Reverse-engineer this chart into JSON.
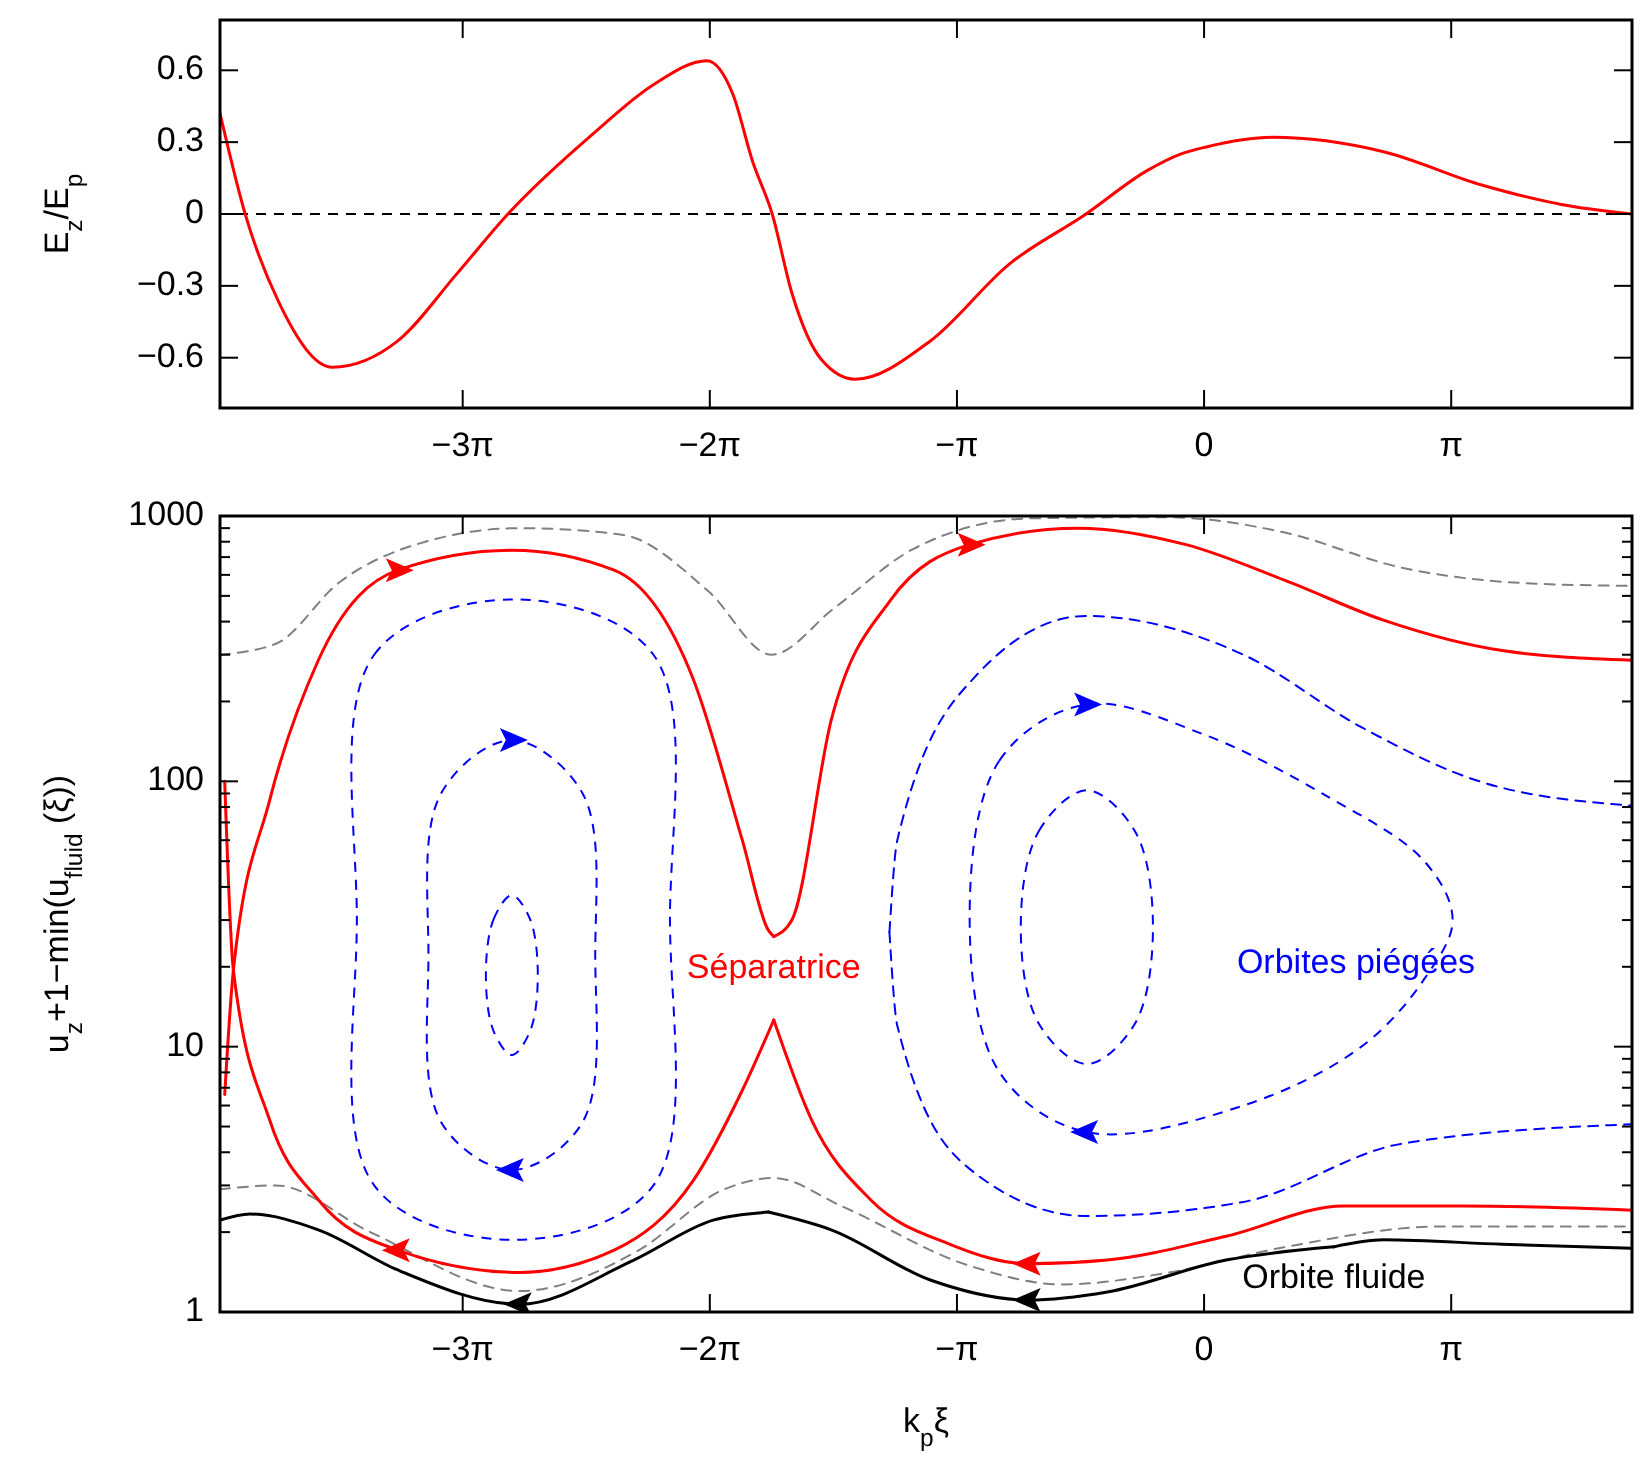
{
  "chart_data": [
    {
      "type": "line",
      "ylabel": "E$_{z}$/E$_{p}$",
      "xlim": [
        -12.51,
        5.44
      ],
      "ylim": [
        -0.81,
        0.81
      ],
      "xticks": [
        {
          "value": -9.42478,
          "label": "−3π"
        },
        {
          "value": -6.28319,
          "label": "−2π"
        },
        {
          "value": -3.14159,
          "label": "−π"
        },
        0,
        {
          "value": 3.14159,
          "label": "π"
        }
      ],
      "yticks": [
        {
          "value": -0.6,
          "label": "−0.6"
        },
        {
          "value": -0.3,
          "label": "−0.3"
        },
        0,
        0.3,
        0.6
      ],
      "ref_lines": [
        {
          "axis": "y",
          "value": 0,
          "color": "#000000",
          "line_style": "dashed"
        }
      ],
      "series": [
        {
          "color": "#ff0000",
          "line_style": "solid",
          "x": [
            -12.51,
            -12.19,
            -11.76,
            -11.08,
            -10.25,
            -9.5,
            -8.85,
            -7.75,
            -7.0,
            -6.32,
            -5.99,
            -5.74,
            -5.49,
            -5.24,
            -4.86,
            -4.44,
            -3.48,
            -2.48,
            -1.5,
            -0.73,
            -0.3,
            0.03,
            0.88,
            2.28,
            3.54,
            4.54,
            5.44
          ],
          "values": [
            0.42,
            0,
            -0.37,
            -0.64,
            -0.53,
            -0.25,
            0,
            0.34,
            0.54,
            0.64,
            0.5,
            0.22,
            0,
            -0.33,
            -0.61,
            -0.69,
            -0.53,
            -0.21,
            0,
            0.18,
            0.25,
            0.28,
            0.32,
            0.26,
            0.12,
            0.04,
            0
          ]
        }
      ]
    },
    {
      "type": "line",
      "xlabel": "k$_{p}$ξ",
      "ylabel": "u$_{z}$+1−min(u$_{fluid}$ (ξ))",
      "log": "y",
      "xlim": [
        -12.51,
        5.44
      ],
      "ylim": [
        1,
        1000
      ],
      "xticks": [
        {
          "value": -9.42478,
          "label": "−3π"
        },
        {
          "value": -6.28319,
          "label": "−2π"
        },
        {
          "value": -3.14159,
          "label": "−π"
        },
        0,
        {
          "value": 3.14159,
          "label": "π"
        }
      ],
      "yticks": [
        1,
        {
          "value": 2,
          "label": null
        },
        {
          "value": 3,
          "label": null
        },
        {
          "value": 4,
          "label": null
        },
        {
          "value": 5,
          "label": null
        },
        {
          "value": 6,
          "label": null
        },
        {
          "value": 7,
          "label": null
        },
        {
          "value": 8,
          "label": null
        },
        {
          "value": 9,
          "label": null
        },
        10,
        {
          "value": 20,
          "label": null
        },
        {
          "value": 30,
          "label": null
        },
        {
          "value": 40,
          "label": null
        },
        {
          "value": 50,
          "label": null
        },
        {
          "value": 60,
          "label": null
        },
        {
          "value": 70,
          "label": null
        },
        {
          "value": 80,
          "label": null
        },
        {
          "value": 90,
          "label": null
        },
        100,
        {
          "value": 200,
          "label": null
        },
        {
          "value": 300,
          "label": null
        },
        {
          "value": 400,
          "label": null
        },
        {
          "value": 500,
          "label": null
        },
        {
          "value": 600,
          "label": null
        },
        {
          "value": 700,
          "label": null
        },
        {
          "value": 800,
          "label": null
        },
        {
          "value": 900,
          "label": null
        },
        1000
      ],
      "annotations": [
        "Orbites piégées"
      ],
      "series": [
        {
          "color": "#808080",
          "line_style": "dashed",
          "x": [
            -12.51,
            -11.8,
            -11.0,
            -9.9,
            -8.7,
            -7.4,
            -6.3,
            -5.5,
            -4.7,
            -3.7,
            -2.2,
            -0.5,
            1.0,
            2.5,
            4.0,
            5.44
          ],
          "values": [
            300,
            330,
            560,
            800,
            900,
            850,
            520,
            300,
            450,
            750,
            980,
            990,
            870,
            640,
            560,
            545
          ]
        },
        {
          "color": "#808080",
          "line_style": "dashed",
          "x": [
            -12.51,
            -11.8,
            -10.6,
            -8.7,
            -7.2,
            -6.1,
            -5.47,
            -4.6,
            -3.0,
            -1.8,
            -0.5,
            1.0,
            3.0,
            5.44
          ],
          "values": [
            2.9,
            3.0,
            2.0,
            1.2,
            1.7,
            2.9,
            3.2,
            2.5,
            1.5,
            1.27,
            1.4,
            1.75,
            2.1,
            2.1
          ]
        },
        {
          "color": "#0000ff",
          "line_style": "dashed",
          "x": [
            -4.0,
            -3.9,
            -2.9,
            -1.5,
            0.5,
            2.0,
            3.5,
            5.44
          ],
          "values": [
            27,
            60,
            250,
            420,
            300,
            160,
            100,
            81
          ]
        },
        {
          "color": "#0000ff",
          "line_style": "dashed",
          "x": [
            -4.0,
            -3.9,
            -3.0,
            -1.5,
            0.5,
            2.5,
            5.44
          ],
          "values": [
            27,
            12,
            3.5,
            2.3,
            2.6,
            4.3,
            5.1
          ]
        },
        {
          "color": "#000000",
          "line_style": "solid",
          "x": [
            -12.51,
            -12.13,
            -11.26,
            -10.25,
            -8.7,
            -7.25,
            -6.24,
            -5.54
          ],
          "values": [
            2.22,
            2.34,
            2.04,
            1.44,
            1.07,
            1.57,
            2.22,
            2.38
          ]
        },
        {
          "name": "Orbite fluide",
          "color": "#000000",
          "line_style": "solid",
          "x": [
            -5.54,
            -4.74,
            -3.48,
            -2.23,
            -1.23,
            0.28,
            1.65
          ],
          "values": [
            2.38,
            2.04,
            1.32,
            1.11,
            1.19,
            1.57,
            1.76
          ]
        },
        {
          "color": "#000000",
          "line_style": "solid",
          "x": [
            1.65,
            2.28,
            3.79,
            5.44
          ],
          "values": [
            1.76,
            1.87,
            1.8,
            1.74
          ]
        },
        {
          "name": "Séparatrice",
          "color": "#ff0000",
          "line_style": "solid",
          "x": [
            -12.45,
            -12.34,
            -11.88,
            -11.26,
            -10.25,
            -8.8,
            -7.5,
            -6.49,
            -5.87,
            -5.54,
            -5.47
          ],
          "values": [
            6.6,
            19.4,
            84.6,
            286,
            625,
            743,
            625,
            241,
            60,
            27.5,
            26
          ]
        },
        {
          "color": "#ff0000",
          "line_style": "solid",
          "x": [
            -5.47,
            -5.24,
            -4.74,
            -3.99,
            -2.98,
            -1.6,
            -0.23,
            1.03,
            2.28,
            3.79,
            5.44
          ],
          "values": [
            26,
            30,
            170,
            480,
            780,
            900,
            780,
            572,
            405,
            311,
            286
          ]
        },
        {
          "color": "#ff0000",
          "line_style": "solid",
          "x": [
            -12.45,
            -12.34,
            -11.88,
            -11.26,
            -10.25,
            -8.7,
            -7.5,
            -6.49,
            -5.87,
            -5.47
          ],
          "values": [
            100,
            19.4,
            5.3,
            2.65,
            1.71,
            1.41,
            1.71,
            3.14,
            6.85,
            12.6
          ]
        },
        {
          "color": "#ff0000",
          "line_style": "solid",
          "x": [
            -5.47,
            -4.99,
            -4.24,
            -3.23,
            -2.23,
            -1.23,
            0.28,
            1.78,
            3.28,
            5.44
          ],
          "values": [
            12.6,
            5.3,
            2.65,
            1.8,
            1.52,
            1.57,
            1.93,
            2.51,
            2.51,
            2.42
          ]
        }
      ]
    }
  ]
}
